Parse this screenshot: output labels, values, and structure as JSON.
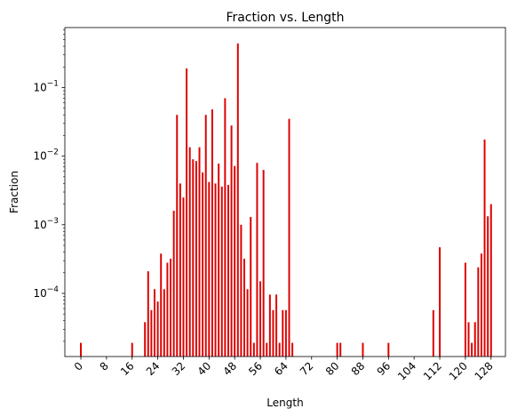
{
  "chart_data": {
    "type": "bar",
    "title": "Fraction vs. Length",
    "xlabel": "Length",
    "ylabel": "Fraction",
    "yscale": "log",
    "ylim": [
      1.2e-05,
      0.75
    ],
    "xlim": [
      -5,
      132.5
    ],
    "bar_color": "#dd0000",
    "xticks": [
      0,
      8,
      16,
      24,
      32,
      40,
      48,
      56,
      64,
      72,
      80,
      88,
      96,
      104,
      112,
      120,
      128
    ],
    "yticks": [
      {
        "value": 0.0001,
        "base": "10",
        "exp": "−4"
      },
      {
        "value": 0.001,
        "base": "10",
        "exp": "−3"
      },
      {
        "value": 0.01,
        "base": "10",
        "exp": "−2"
      },
      {
        "value": 0.1,
        "base": "10",
        "exp": "−1"
      }
    ],
    "x": [
      0,
      16,
      20,
      21,
      22,
      23,
      24,
      25,
      26,
      27,
      28,
      29,
      30,
      31,
      32,
      33,
      34,
      35,
      36,
      37,
      38,
      39,
      40,
      41,
      42,
      43,
      44,
      45,
      46,
      47,
      48,
      49,
      50,
      51,
      52,
      53,
      54,
      55,
      56,
      57,
      58,
      59,
      60,
      61,
      62,
      63,
      64,
      65,
      66,
      80,
      81,
      88,
      96,
      110,
      112,
      120,
      121,
      122,
      123,
      124,
      125,
      126,
      127,
      128
    ],
    "values": [
      1.9e-05,
      1.9e-05,
      3.8e-05,
      0.00021,
      5.7e-05,
      0.000115,
      7.6e-05,
      0.00038,
      0.000115,
      0.00028,
      0.00032,
      0.0016,
      0.04,
      0.004,
      0.0025,
      0.19,
      0.0135,
      0.009,
      0.0085,
      0.0135,
      0.0058,
      0.04,
      0.0042,
      0.048,
      0.004,
      0.0078,
      0.0036,
      0.07,
      0.0038,
      0.028,
      0.0072,
      0.44,
      0.001,
      0.00032,
      0.000115,
      0.0013,
      1.9e-05,
      0.008,
      0.00015,
      0.0063,
      1.9e-05,
      9.6e-05,
      5.7e-05,
      9.6e-05,
      1.9e-05,
      5.7e-05,
      5.7e-05,
      0.035,
      1.9e-05,
      1.9e-05,
      1.9e-05,
      1.9e-05,
      1.9e-05,
      5.7e-05,
      0.00047,
      0.00028,
      3.8e-05,
      1.9e-05,
      3.8e-05,
      0.00024,
      0.00038,
      0.0175,
      0.00133,
      0.002
    ]
  }
}
